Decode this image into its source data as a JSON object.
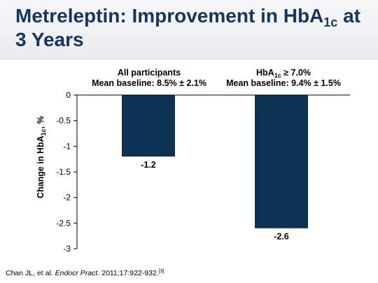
{
  "slide": {
    "title_prefix": "Metreleptin: Improvement in HbA",
    "title_sub": "1c",
    "title_suffix": " at 3 Years"
  },
  "chart_data": {
    "type": "bar",
    "categories": [
      "All participants",
      "HbA1c ≥ 7.0%"
    ],
    "category_headers": [
      {
        "line1_prefix": "All participants",
        "line1_sub": "",
        "line1_suffix": "",
        "line2": "Mean baseline: 8.5% ± 2.1%"
      },
      {
        "line1_prefix": "HbA",
        "line1_sub": "1c",
        "line1_suffix": " ≥ 7.0%",
        "line2": "Mean baseline: 9.4% ± 1.5%"
      }
    ],
    "values": [
      -1.2,
      -2.6
    ],
    "data_labels": [
      "-1.2",
      "-2.6"
    ],
    "ylabel": {
      "prefix": "Change in HbA",
      "sub": "1c",
      "suffix": ", %"
    },
    "ylim": [
      -3,
      0
    ],
    "yticks": [
      0,
      -0.5,
      -1,
      -1.5,
      -2,
      -2.5,
      -3
    ],
    "ytick_labels": [
      "0",
      "-0.5",
      "-1",
      "-1.5",
      "-2",
      "-2.5",
      "-3"
    ],
    "bar_color": "#0d3352",
    "grid": false
  },
  "citation": {
    "authors": "Chan JL, et al. ",
    "journal": "Endocr Pract",
    "details": ". 2011;17:922-932.",
    "ref": "[3]"
  }
}
